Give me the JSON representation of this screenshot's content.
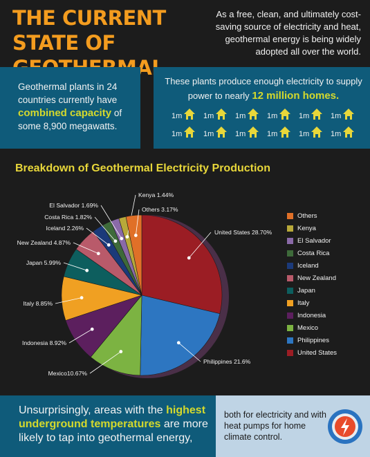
{
  "header": {
    "title_line1": "THE CURRENT STATE OF",
    "title_line2": "GEOTHERMAL ENERGY",
    "intro": "As a free, clean, and ultimately cost-saving source of electricity and heat, geothermal energy is being widely adopted all over the world."
  },
  "panel_left": {
    "text1": "Geothermal plants in 24 countries currently have",
    "highlight": "combined capacity",
    "text2": "of some 8,900 megawatts."
  },
  "panel_right": {
    "text1": "These plants produce enough electricity to supply power to nearly",
    "highlight": "12 million homes.",
    "home_label": "1m",
    "home_icon": "house-icon",
    "home_count": 12
  },
  "breakdown_heading": "Breakdown of Geothermal Electricity Production",
  "chart_data": {
    "type": "pie",
    "slices": [
      {
        "name": "United States",
        "value": 28.7,
        "label": "United States 28.70%",
        "color": "#9b1d24"
      },
      {
        "name": "Philippines",
        "value": 21.6,
        "label": "Philippines 21.6%",
        "color": "#2d76c1"
      },
      {
        "name": "Mexico",
        "value": 10.67,
        "label": "Mexico10.67%",
        "color": "#7cb342"
      },
      {
        "name": "Indonesia",
        "value": 8.92,
        "label": "Indonesia 8.92%",
        "color": "#5c1f5e"
      },
      {
        "name": "Italy",
        "value": 8.85,
        "label": "Italy 8.85%",
        "color": "#f0a022"
      },
      {
        "name": "Japan",
        "value": 5.99,
        "label": "Japan 5.99%",
        "color": "#0d5e5e"
      },
      {
        "name": "New Zealand",
        "value": 4.87,
        "label": "New Zealand 4.87%",
        "color": "#b95a6a"
      },
      {
        "name": "Iceland",
        "value": 2.26,
        "label": "Iceland 2.26%",
        "color": "#1b3a7a"
      },
      {
        "name": "Costa Rica",
        "value": 1.82,
        "label": "Costa Rica 1.82%",
        "color": "#3e6a3a"
      },
      {
        "name": "El Salvador",
        "value": 1.69,
        "label": "El Salvador 1.69%",
        "color": "#8a6aa8"
      },
      {
        "name": "Kenya",
        "value": 1.44,
        "label": "Kenya 1.44%",
        "color": "#b8a93a"
      },
      {
        "name": "Others",
        "value": 3.17,
        "label": "Others 3.17%",
        "color": "#e07028"
      }
    ],
    "legend": [
      "Others",
      "Kenya",
      "El Salvador",
      "Costa Rica",
      "Iceland",
      "New Zealand",
      "Japan",
      "Italy",
      "Indonesia",
      "Mexico",
      "Philippines",
      "United States"
    ],
    "legend_placement": "right"
  },
  "bottom": {
    "text1": "Unsurprisingly, areas with the",
    "highlight": "highest underground temperatures",
    "text2": "are more likely to tap into geothermal energy,",
    "right_text": "both for electricity and with heat pumps for home climate control.",
    "icon": "lightning-bolt-icon"
  }
}
